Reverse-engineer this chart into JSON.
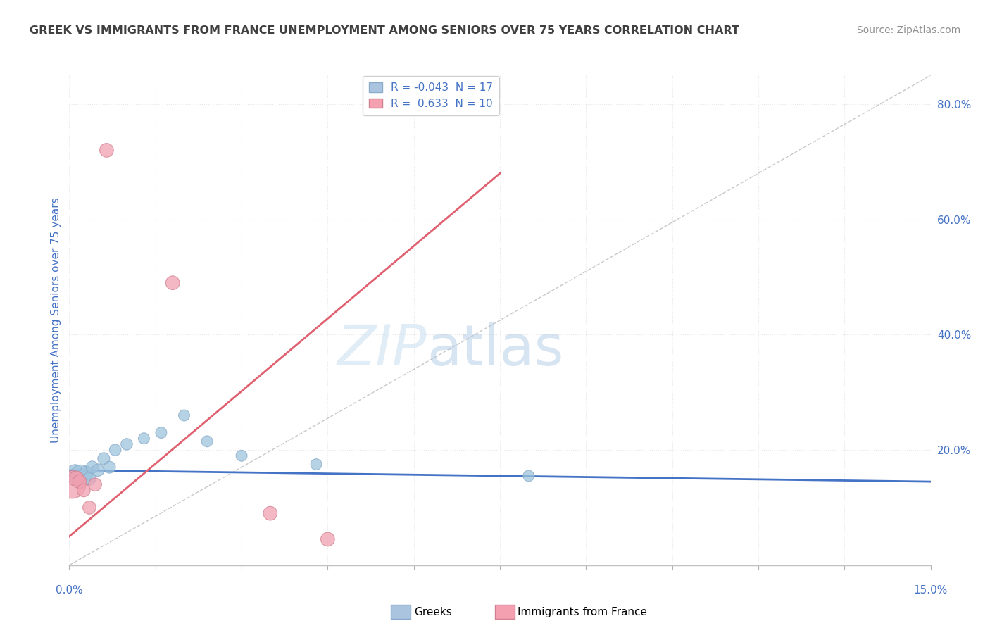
{
  "title": "GREEK VS IMMIGRANTS FROM FRANCE UNEMPLOYMENT AMONG SENIORS OVER 75 YEARS CORRELATION CHART",
  "source": "Source: ZipAtlas.com",
  "ylabel_label": "Unemployment Among Seniors over 75 years",
  "xlim": [
    0.0,
    15.0
  ],
  "ylim": [
    0.0,
    85.0
  ],
  "watermark_zip": "ZIP",
  "watermark_atlas": "atlas",
  "legend_greek_label": "R = -0.043  N = 17",
  "legend_immig_label": "R =  0.633  N = 10",
  "legend_greek_color": "#aac4e0",
  "legend_immig_color": "#f4a0b0",
  "greeks_x": [
    0.1,
    0.2,
    0.3,
    0.35,
    0.4,
    0.5,
    0.6,
    0.7,
    0.8,
    1.0,
    1.3,
    1.6,
    2.0,
    2.4,
    3.0,
    4.3,
    8.0
  ],
  "greeks_y": [
    16.0,
    15.5,
    16.0,
    15.0,
    17.0,
    16.5,
    18.5,
    17.0,
    20.0,
    21.0,
    22.0,
    23.0,
    26.0,
    21.5,
    19.0,
    17.5,
    15.5
  ],
  "greeks_size": [
    300,
    500,
    200,
    180,
    160,
    160,
    150,
    150,
    140,
    140,
    130,
    130,
    130,
    130,
    130,
    130,
    130
  ],
  "immigrants_x": [
    0.05,
    0.12,
    0.18,
    0.25,
    0.35,
    0.45,
    0.65,
    1.8,
    3.5,
    4.5
  ],
  "immigrants_y": [
    14.0,
    15.0,
    14.5,
    13.0,
    10.0,
    14.0,
    72.0,
    49.0,
    9.0,
    4.5
  ],
  "immigrants_size": [
    800,
    250,
    200,
    180,
    180,
    180,
    200,
    200,
    200,
    200
  ],
  "blue_line_x": [
    0.0,
    15.0
  ],
  "blue_line_y": [
    16.5,
    14.5
  ],
  "pink_line_x": [
    0.0,
    7.5
  ],
  "pink_line_y": [
    5.0,
    68.0
  ],
  "diag_line_x": [
    0.0,
    15.0
  ],
  "diag_line_y": [
    0.0,
    85.0
  ],
  "greek_color": "#9ec4dd",
  "immigrant_color": "#f0a0b0",
  "blue_line_color": "#4472c4",
  "pink_line_color": "#e06070",
  "diag_line_color": "#c8c8c8",
  "title_color": "#404040",
  "source_color": "#909090",
  "axis_label_color": "#4472c4",
  "tick_color": "#4472c4",
  "grid_color": "#e8e8e8",
  "background_color": "#ffffff"
}
